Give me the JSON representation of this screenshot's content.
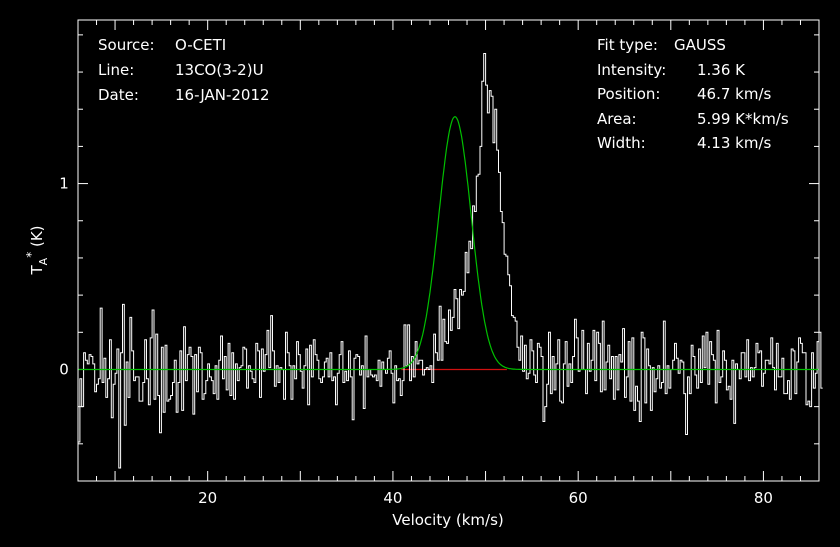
{
  "header": {
    "left": [
      {
        "label": "Source:",
        "value": "O-CETI"
      },
      {
        "label": "Line:",
        "value": "13CO(3-2)U"
      },
      {
        "label": "Date:",
        "value": "16-JAN-2012"
      }
    ],
    "right": [
      {
        "label": "Fit type:",
        "value": "GAUSS"
      },
      {
        "label": "Intensity:",
        "value": "1.36 K"
      },
      {
        "label": "Position:",
        "value": "46.7 km/s"
      },
      {
        "label": "Area:",
        "value": "5.99 K*km/s"
      },
      {
        "label": "Width:",
        "value": "4.13 km/s"
      }
    ]
  },
  "colors": {
    "background": "#000000",
    "spectrum": "#ffffff",
    "fit": "#00c000",
    "baseline": "#d01010"
  },
  "chart_data": {
    "type": "line",
    "title": "",
    "xlabel": "Velocity (km/s)",
    "ylabel": "T_A* (K)",
    "xlim": [
      6,
      86
    ],
    "ylim": [
      -0.6,
      1.88
    ],
    "x_ticks": [
      20,
      40,
      60,
      80
    ],
    "x_tick_labels": [
      "20",
      "40",
      "60",
      "80"
    ],
    "y_ticks": [
      0,
      1
    ],
    "y_tick_labels": [
      "0",
      "1"
    ],
    "grid": false,
    "series": [
      {
        "role": "spectrum",
        "x_start": 6.0,
        "x_step": 0.2,
        "values": [
          -0.39,
          -0.05,
          -0.2,
          0.09,
          0.05,
          0.03,
          0.08,
          0.07,
          0.03,
          -0.12,
          -0.08,
          -0.05,
          0.33,
          -0.07,
          0.06,
          -0.15,
          -0.05,
          0.16,
          -0.26,
          -0.08,
          -0.02,
          0.11,
          -0.53,
          0.09,
          0.35,
          -0.3,
          0.04,
          -0.15,
          0.28,
          0.1,
          -0.06,
          -0.04,
          -0.04,
          -0.17,
          -0.17,
          -0.07,
          0.16,
          -0.05,
          -0.19,
          0.17,
          0.32,
          -0.16,
          0.19,
          -0.14,
          -0.34,
          0.12,
          -0.23,
          0.13,
          -0.17,
          -0.16,
          -0.14,
          -0.07,
          0.05,
          -0.23,
          -0.07,
          0.1,
          -0.22,
          0.23,
          -0.06,
          0.08,
          0.12,
          0.07,
          -0.24,
          0.08,
          -0.12,
          0.12,
          0.09,
          -0.16,
          -0.13,
          -0.06,
          0.03,
          -0.04,
          -0.06,
          -0.13,
          0.02,
          -0.16,
          0.05,
          0.18,
          -0.05,
          0.07,
          -0.11,
          0.14,
          -0.14,
          0.09,
          -0.16,
          0.03,
          -0.06,
          0.01,
          0.02,
          0.12,
          0.11,
          -0.1,
          0.02,
          -0.01,
          -0.05,
          -0.07,
          0.14,
          0.1,
          -0.15,
          0.11,
          -0.01,
          0.08,
          0.21,
          0.01,
          0.29,
          0.1,
          -0.09,
          0.02,
          -0.07,
          0.01,
          0.0,
          -0.16,
          0.2,
          0.09,
          0.02,
          -0.16,
          0.02,
          -0.05,
          0.15,
          0.08,
          -0.01,
          -0.1,
          0.02,
          0.11,
          -0.19,
          0.13,
          -0.04,
          0.16,
          0.08,
          0.05,
          -0.05,
          -0.07,
          -0.04,
          0.04,
          0.06,
          -0.04,
          0.09,
          -0.06,
          -0.04,
          -0.19,
          -0.02,
          0.08,
          0.15,
          -0.07,
          -0.01,
          -0.06,
          0.1,
          -0.04,
          -0.27,
          0.06,
          0.08,
          0.07,
          -0.03,
          0.02,
          -0.21,
          0.18,
          -0.04,
          0.0,
          -0.03,
          -0.04,
          -0.03,
          -0.06,
          0.05,
          -0.09,
          0.04,
          0.0,
          -0.02,
          0.06,
          0.1,
          -0.02,
          -0.18,
          0.02,
          -0.06,
          -0.05,
          -0.14,
          -0.06,
          0.24,
          0.02,
          0.24,
          -0.06,
          0.07,
          -0.04,
          0.15,
          0.03,
          0.05,
          0.05,
          -0.03,
          0.0,
          0.01,
          0.0,
          0.02,
          -0.07,
          0.19,
          0.09,
          0.05,
          0.34,
          0.05,
          0.27,
          0.15,
          0.14,
          0.32,
          0.21,
          0.28,
          0.43,
          0.38,
          0.22,
          0.43,
          0.4,
          0.42,
          0.63,
          0.52,
          0.69,
          0.65,
          0.88,
          0.85,
          1.04,
          1.05,
          1.2,
          1.55,
          1.7,
          1.53,
          1.38,
          1.5,
          1.47,
          1.22,
          1.4,
          1.18,
          1.06,
          0.85,
          0.79,
          0.62,
          0.61,
          0.51,
          0.45,
          0.29,
          0.28,
          0.26,
          0.12,
          0.05,
          0.18,
          -0.01,
          0.13,
          -0.05,
          -0.02,
          0.16,
          0.1,
          -0.03,
          -0.07,
          0.14,
          0.12,
          0.07,
          -0.28,
          -0.2,
          -0.08,
          0.2,
          -0.13,
          0.07,
          -0.11,
          0.03,
          0.16,
          -0.17,
          -0.18,
          0.03,
          0.15,
          -0.09,
          0.03,
          -0.07,
          0.07,
          0.27,
          0.17,
          -0.01,
          0.0,
          0.21,
          0.0,
          -0.13,
          0.14,
          -0.01,
          0.05,
          0.21,
          -0.06,
          0.2,
          0.14,
          -0.12,
          0.26,
          -0.11,
          0.04,
          0.13,
          -0.05,
          0.07,
          -0.16,
          0.07,
          -0.11,
          0.08,
          0.04,
          0.22,
          -0.15,
          -0.04,
          0.15,
          -0.17,
          0.17,
          -0.22,
          -0.09,
          -0.17,
          -0.28,
          0.2,
          0.17,
          -0.18,
          0.11,
          0.02,
          -0.22,
          0.01,
          -0.12,
          -0.05,
          0.02,
          -0.1,
          -0.07,
          0.26,
          -0.13,
          0.02,
          -0.1,
          0.0,
          0.05,
          0.14,
          0.06,
          -0.02,
          0.05,
          0.04,
          -0.13,
          -0.35,
          -0.04,
          -0.13,
          0.13,
          0.07,
          -0.03,
          -0.1,
          0.11,
          -0.07,
          0.18,
          0.01,
          0.2,
          -0.08,
          0.15,
          0.08,
          0.05,
          -0.18,
          0.21,
          -0.07,
          -0.04,
          0.1,
          0.05,
          -0.11,
          -0.09,
          -0.16,
          0.05,
          -0.29,
          0.03,
          0.0,
          -0.05,
          0.09,
          0.09,
          -0.04,
          0.16,
          -0.06,
          0.01,
          -0.04,
          0.01,
          0.14,
          0.09,
          0.1,
          -0.09,
          -0.02,
          0.05,
          0.05,
          0.03,
          0.17,
          0.01,
          -0.11,
          0.14,
          -0.04,
          -0.04,
          0.06,
          -0.13,
          -0.13,
          -0.06,
          -0.16,
          0.11,
          0.1,
          -0.13,
          0.04,
          0.17,
          0.14,
          0.09,
          0.09,
          -0.19,
          -0.17,
          -0.2,
          0.09,
          -0.1,
          -0.02,
          0.15,
          0.2,
          -0.1
        ]
      },
      {
        "role": "gaussian-fit",
        "model": "gaussian",
        "amplitude": 1.36,
        "center": 46.7,
        "fwhm": 4.13
      },
      {
        "role": "baseline",
        "x": [
          40.9,
          52.3
        ],
        "y": [
          0,
          0
        ]
      }
    ]
  }
}
